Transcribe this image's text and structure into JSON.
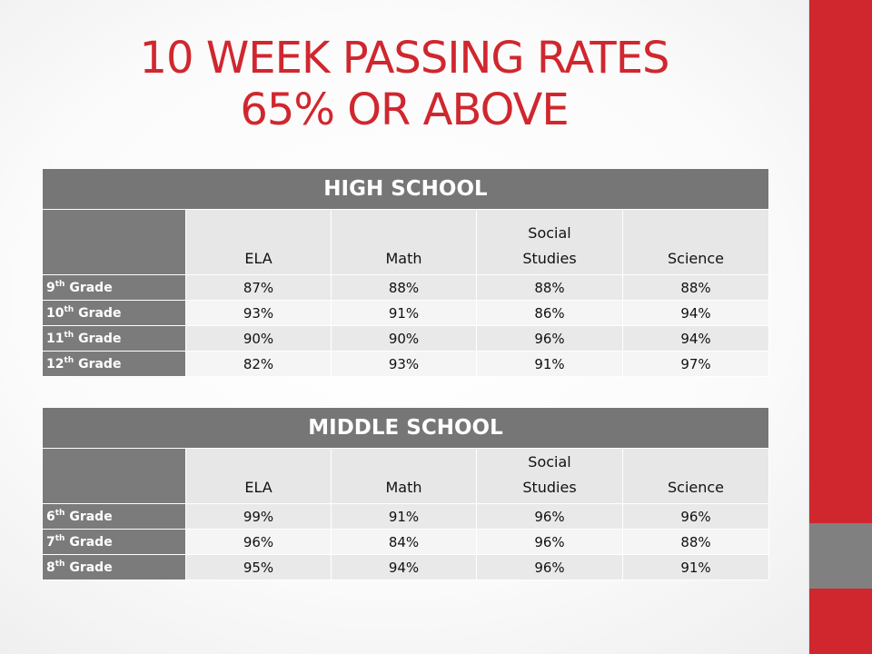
{
  "title": {
    "line1": "10 WEEK PASSING RATES",
    "line2": "65% OR ABOVE"
  },
  "colors": {
    "accent_red": "#d0272f",
    "header_gray": "#767676"
  },
  "columns": {
    "ela": "ELA",
    "math": "Math",
    "social_line1": "Social",
    "social_line2": "Studies",
    "science": "Science"
  },
  "high_school": {
    "banner": "HIGH SCHOOL",
    "rows": [
      {
        "grade": "9",
        "suffix": "th",
        "label": "Grade",
        "ela": "87%",
        "math": "88%",
        "social": "88%",
        "science": "88%"
      },
      {
        "grade": "10",
        "suffix": "th",
        "label": "Grade",
        "ela": "93%",
        "math": "91%",
        "social": "86%",
        "science": "94%"
      },
      {
        "grade": "11",
        "suffix": "th",
        "label": "Grade",
        "ela": "90%",
        "math": "90%",
        "social": "96%",
        "science": "94%"
      },
      {
        "grade": "12",
        "suffix": "th",
        "label": "Grade",
        "ela": "82%",
        "math": "93%",
        "social": "91%",
        "science": "97%"
      }
    ]
  },
  "middle_school": {
    "banner": "MIDDLE SCHOOL",
    "rows": [
      {
        "grade": "6",
        "suffix": "th",
        "label": "Grade",
        "ela": "99%",
        "math": "91%",
        "social": "96%",
        "science": "96%"
      },
      {
        "grade": "7",
        "suffix": "th",
        "label": "Grade",
        "ela": "96%",
        "math": "84%",
        "social": "96%",
        "science": "88%"
      },
      {
        "grade": "8",
        "suffix": "th",
        "label": "Grade",
        "ela": "95%",
        "math": "94%",
        "social": "96%",
        "science": "91%"
      }
    ]
  }
}
